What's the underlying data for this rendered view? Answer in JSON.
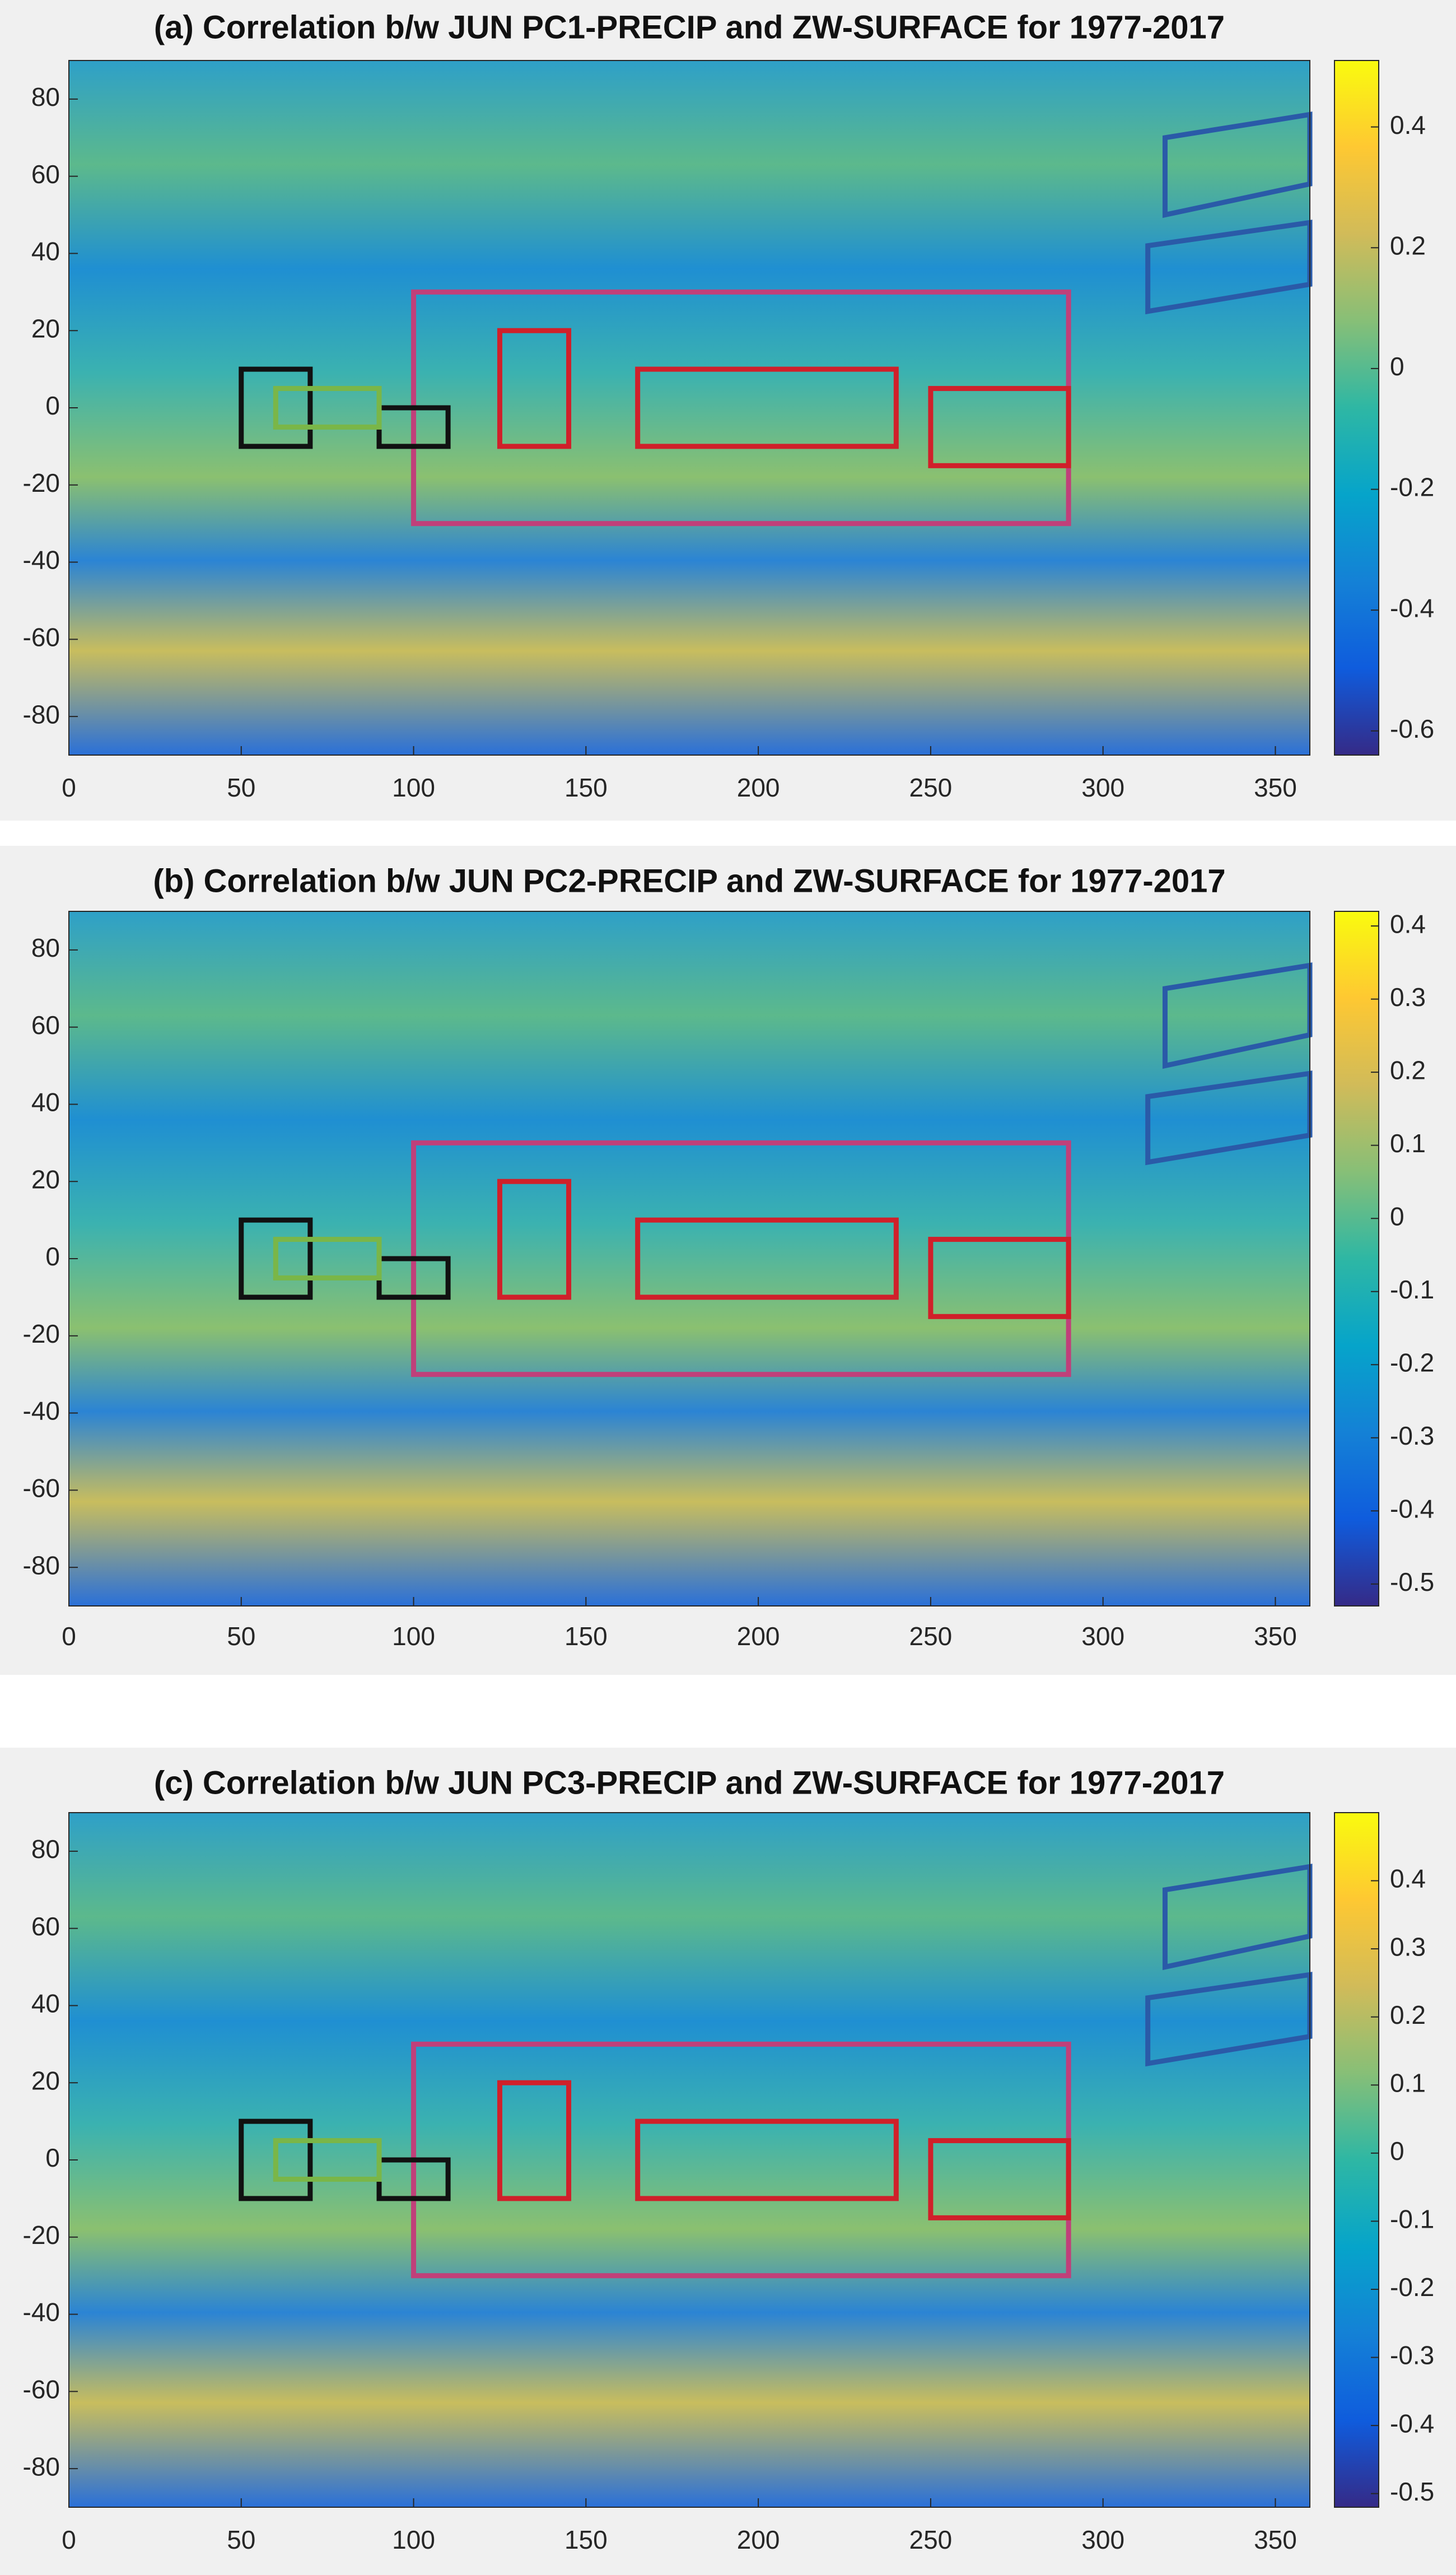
{
  "chart_data": [
    {
      "type": "heatmap",
      "title": "(a) Correlation b/w JUN PC1-PRECIP and ZW-SURFACE for 1977-2017",
      "xlim": [
        0,
        360
      ],
      "ylim": [
        -90,
        90
      ],
      "xticks": [
        0,
        50,
        100,
        150,
        200,
        250,
        300,
        350
      ],
      "yticks": [
        -80,
        -60,
        -40,
        -20,
        0,
        20,
        40,
        60,
        80
      ],
      "clim": [
        -0.64,
        0.51
      ],
      "cticks": [
        -0.6,
        -0.4,
        -0.2,
        0,
        0.2,
        0.4
      ],
      "regions": [
        {
          "color": "#c0407a",
          "lon": [
            100,
            290
          ],
          "lat": [
            -30,
            30
          ]
        },
        {
          "color": "#d0202a",
          "lon": [
            125,
            145
          ],
          "lat": [
            -10,
            20
          ]
        },
        {
          "color": "#d0202a",
          "lon": [
            165,
            240
          ],
          "lat": [
            -10,
            10
          ]
        },
        {
          "color": "#d0202a",
          "lon": [
            250,
            290
          ],
          "lat": [
            -15,
            5
          ]
        },
        {
          "color": "#111111",
          "lon": [
            50,
            70
          ],
          "lat": [
            -10,
            10
          ]
        },
        {
          "color": "#111111",
          "lon": [
            90,
            110
          ],
          "lat": [
            -10,
            0
          ]
        },
        {
          "color": "#7ab648",
          "lon": [
            60,
            90
          ],
          "lat": [
            -5,
            5
          ]
        }
      ],
      "polygons": [
        {
          "color": "#2a5aa8",
          "lon": [
            318,
            318,
            360,
            360
          ],
          "lat": [
            50,
            70,
            76,
            58
          ]
        },
        {
          "color": "#2a5aa8",
          "lon": [
            313,
            313,
            360,
            360
          ],
          "lat": [
            25,
            42,
            48,
            32
          ]
        }
      ]
    },
    {
      "type": "heatmap",
      "title": "(b) Correlation b/w JUN PC2-PRECIP and ZW-SURFACE for 1977-2017",
      "xlim": [
        0,
        360
      ],
      "ylim": [
        -90,
        90
      ],
      "xticks": [
        0,
        50,
        100,
        150,
        200,
        250,
        300,
        350
      ],
      "yticks": [
        -80,
        -60,
        -40,
        -20,
        0,
        20,
        40,
        60,
        80
      ],
      "clim": [
        -0.53,
        0.42
      ],
      "cticks": [
        -0.5,
        -0.4,
        -0.3,
        -0.2,
        -0.1,
        0,
        0.1,
        0.2,
        0.3,
        0.4
      ],
      "regions": [
        {
          "color": "#c0407a",
          "lon": [
            100,
            290
          ],
          "lat": [
            -30,
            30
          ]
        },
        {
          "color": "#d0202a",
          "lon": [
            125,
            145
          ],
          "lat": [
            -10,
            20
          ]
        },
        {
          "color": "#d0202a",
          "lon": [
            165,
            240
          ],
          "lat": [
            -10,
            10
          ]
        },
        {
          "color": "#d0202a",
          "lon": [
            250,
            290
          ],
          "lat": [
            -15,
            5
          ]
        },
        {
          "color": "#111111",
          "lon": [
            50,
            70
          ],
          "lat": [
            -10,
            10
          ]
        },
        {
          "color": "#111111",
          "lon": [
            90,
            110
          ],
          "lat": [
            -10,
            0
          ]
        },
        {
          "color": "#7ab648",
          "lon": [
            60,
            90
          ],
          "lat": [
            -5,
            5
          ]
        }
      ],
      "polygons": [
        {
          "color": "#2a5aa8",
          "lon": [
            318,
            318,
            360,
            360
          ],
          "lat": [
            50,
            70,
            76,
            58
          ]
        },
        {
          "color": "#2a5aa8",
          "lon": [
            313,
            313,
            360,
            360
          ],
          "lat": [
            25,
            42,
            48,
            32
          ]
        }
      ]
    },
    {
      "type": "heatmap",
      "title": "(c) Correlation b/w JUN PC3-PRECIP and ZW-SURFACE for 1977-2017",
      "xlim": [
        0,
        360
      ],
      "ylim": [
        -90,
        90
      ],
      "xticks": [
        0,
        50,
        100,
        150,
        200,
        250,
        300,
        350
      ],
      "yticks": [
        -80,
        -60,
        -40,
        -20,
        0,
        20,
        40,
        60,
        80
      ],
      "clim": [
        -0.52,
        0.5
      ],
      "cticks": [
        -0.5,
        -0.4,
        -0.3,
        -0.2,
        -0.1,
        0,
        0.1,
        0.2,
        0.3,
        0.4
      ],
      "regions": [
        {
          "color": "#c0407a",
          "lon": [
            100,
            290
          ],
          "lat": [
            -30,
            30
          ]
        },
        {
          "color": "#d0202a",
          "lon": [
            125,
            145
          ],
          "lat": [
            -10,
            20
          ]
        },
        {
          "color": "#d0202a",
          "lon": [
            165,
            240
          ],
          "lat": [
            -10,
            10
          ]
        },
        {
          "color": "#d0202a",
          "lon": [
            250,
            290
          ],
          "lat": [
            -15,
            5
          ]
        },
        {
          "color": "#111111",
          "lon": [
            50,
            70
          ],
          "lat": [
            -10,
            10
          ]
        },
        {
          "color": "#111111",
          "lon": [
            90,
            110
          ],
          "lat": [
            -10,
            0
          ]
        },
        {
          "color": "#7ab648",
          "lon": [
            60,
            90
          ],
          "lat": [
            -5,
            5
          ]
        }
      ],
      "polygons": [
        {
          "color": "#2a5aa8",
          "lon": [
            318,
            318,
            360,
            360
          ],
          "lat": [
            50,
            70,
            76,
            58
          ]
        },
        {
          "color": "#2a5aa8",
          "lon": [
            313,
            313,
            360,
            360
          ],
          "lat": [
            25,
            42,
            48,
            32
          ]
        }
      ]
    }
  ]
}
